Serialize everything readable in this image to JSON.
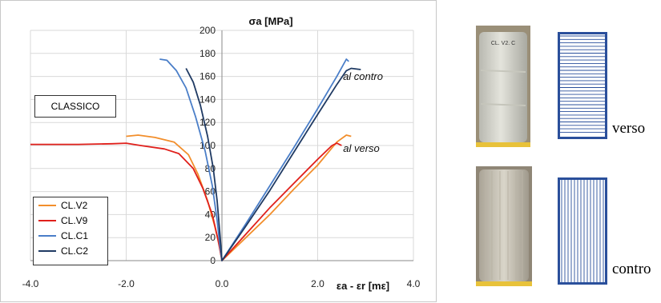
{
  "chart_data": {
    "type": "line",
    "title": "",
    "ylabel": "σa [MPa]",
    "xlabel": "εa - εr [mε]",
    "xlim": [
      -4.0,
      4.0
    ],
    "ylim": [
      0,
      200
    ],
    "xticks": [
      "-4.0",
      "-2.0",
      "0.0",
      "2.0",
      "4.0"
    ],
    "yticks": [
      "0",
      "20",
      "40",
      "60",
      "80",
      "100",
      "120",
      "140",
      "160",
      "180",
      "200"
    ],
    "grid": true,
    "legend_position": "bottom-left",
    "box_label": "CLASSICO",
    "annotations": [
      "al contro",
      "al verso"
    ],
    "series": [
      {
        "name": "CL.V2",
        "color": "#f28e2b",
        "points": [
          [
            -2.0,
            108
          ],
          [
            -1.75,
            109
          ],
          [
            -1.4,
            107
          ],
          [
            -1.0,
            103
          ],
          [
            -0.7,
            92
          ],
          [
            -0.5,
            75
          ],
          [
            -0.3,
            52
          ],
          [
            -0.15,
            30
          ],
          [
            -0.05,
            12
          ],
          [
            0,
            0
          ],
          [
            0.5,
            20
          ],
          [
            1.0,
            40
          ],
          [
            1.5,
            62
          ],
          [
            2.0,
            83
          ],
          [
            2.4,
            103
          ],
          [
            2.6,
            109
          ],
          [
            2.7,
            108
          ]
        ]
      },
      {
        "name": "CL.V9",
        "color": "#e0201b",
        "points": [
          [
            -4.0,
            101
          ],
          [
            -3.0,
            101
          ],
          [
            -2.3,
            101.5
          ],
          [
            -2.0,
            102
          ],
          [
            -1.7,
            100
          ],
          [
            -1.2,
            97
          ],
          [
            -0.9,
            93
          ],
          [
            -0.6,
            80
          ],
          [
            -0.4,
            63
          ],
          [
            -0.2,
            40
          ],
          [
            -0.08,
            18
          ],
          [
            0,
            0
          ],
          [
            0.5,
            23
          ],
          [
            1.0,
            46
          ],
          [
            1.5,
            67
          ],
          [
            2.0,
            88
          ],
          [
            2.3,
            100
          ],
          [
            2.4,
            102
          ],
          [
            2.5,
            100
          ]
        ]
      },
      {
        "name": "CL.C1",
        "color": "#4a7ec8",
        "points": [
          [
            -1.3,
            175
          ],
          [
            -1.15,
            174
          ],
          [
            -0.95,
            165
          ],
          [
            -0.75,
            150
          ],
          [
            -0.55,
            125
          ],
          [
            -0.35,
            95
          ],
          [
            -0.2,
            65
          ],
          [
            -0.1,
            35
          ],
          [
            -0.04,
            12
          ],
          [
            0,
            0
          ],
          [
            0.5,
            32
          ],
          [
            1.0,
            65
          ],
          [
            1.5,
            98
          ],
          [
            2.0,
            132
          ],
          [
            2.4,
            160
          ],
          [
            2.6,
            175
          ],
          [
            2.65,
            173
          ]
        ]
      },
      {
        "name": "CL.C2",
        "color": "#1f3a63",
        "points": [
          [
            -0.75,
            167
          ],
          [
            -0.6,
            155
          ],
          [
            -0.45,
            135
          ],
          [
            -0.3,
            108
          ],
          [
            -0.18,
            80
          ],
          [
            -0.1,
            52
          ],
          [
            -0.04,
            22
          ],
          [
            0,
            0
          ],
          [
            0.5,
            30
          ],
          [
            1.0,
            61
          ],
          [
            1.5,
            94
          ],
          [
            2.0,
            127
          ],
          [
            2.4,
            153
          ],
          [
            2.6,
            165
          ],
          [
            2.7,
            167
          ],
          [
            2.9,
            166
          ]
        ]
      }
    ]
  },
  "samples": {
    "verso_caption": "verso",
    "contro_caption": "contro",
    "sample_label": "CL. V2. C"
  }
}
